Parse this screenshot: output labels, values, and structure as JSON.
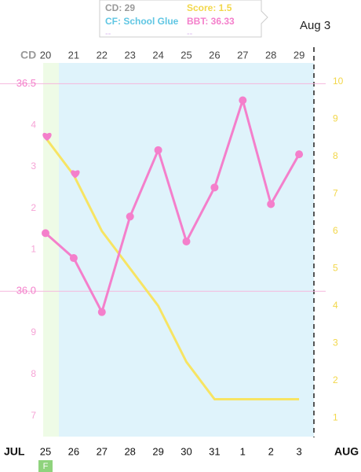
{
  "chart_data": {
    "type": "line",
    "cd_label": "CD",
    "categories": [
      "20",
      "21",
      "22",
      "23",
      "24",
      "25",
      "26",
      "27",
      "28",
      "29"
    ],
    "dates": [
      "25",
      "26",
      "27",
      "28",
      "29",
      "30",
      "31",
      "1",
      "2",
      "3"
    ],
    "month_start": "JUL",
    "month_end": "AUG",
    "fertile_tag": "F",
    "date_header": "Aug 3",
    "tooltip": {
      "cd": "CD: 29",
      "score": "Score: 1.5",
      "cf": "CF: School Glue",
      "bbt": "BBT: 36.33",
      "extra_left": "--",
      "extra_right": "--"
    },
    "ylim": [
      35.65,
      36.55
    ],
    "yticks": [
      36.5,
      {
        "value": 36.4,
        "label": "4"
      },
      {
        "value": 36.3,
        "label": "3"
      },
      {
        "value": 36.2,
        "label": "2"
      },
      {
        "value": 36.1,
        "label": "1"
      },
      {
        "value": 36.0,
        "label": "36.0"
      },
      {
        "value": 35.9,
        "label": "9"
      },
      {
        "value": 35.8,
        "label": "8"
      },
      {
        "value": 35.7,
        "label": "7"
      }
    ],
    "y2lim": [
      0.5,
      10.5
    ],
    "y2ticks": [
      10,
      9,
      8,
      7,
      6,
      5,
      4,
      3,
      2,
      1
    ],
    "reference_lines": [
      36.5,
      36.0
    ],
    "series": [
      {
        "name": "BBT",
        "color": "#f47fcb",
        "values": [
          36.14,
          36.08,
          35.95,
          36.18,
          36.34,
          36.12,
          36.25,
          36.46,
          36.21,
          36.33
        ]
      },
      {
        "name": "Score",
        "color": "#f7e463",
        "axis": "y2",
        "values": [
          8.5,
          7.5,
          6.0,
          5.0,
          4.0,
          2.5,
          1.5,
          1.5,
          1.5,
          1.5
        ]
      }
    ],
    "heart_days": [
      "20",
      "21"
    ]
  }
}
